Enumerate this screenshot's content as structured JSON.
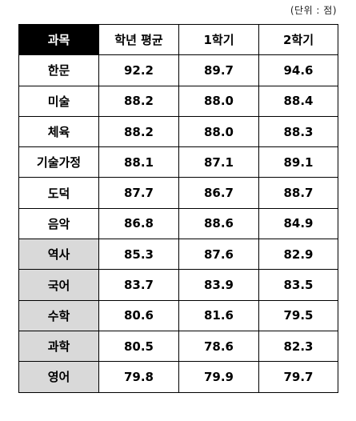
{
  "unit_note": "(단위 : 점)",
  "table": {
    "headers": [
      "과목",
      "학년 평균",
      "1학기",
      "2학기"
    ],
    "rows": [
      {
        "subject": "한문",
        "avg": "92.2",
        "s1": "89.7",
        "s2": "94.6",
        "shaded": false
      },
      {
        "subject": "미술",
        "avg": "88.2",
        "s1": "88.0",
        "s2": "88.4",
        "shaded": false
      },
      {
        "subject": "체육",
        "avg": "88.2",
        "s1": "88.0",
        "s2": "88.3",
        "shaded": false
      },
      {
        "subject": "기술가정",
        "avg": "88.1",
        "s1": "87.1",
        "s2": "89.1",
        "shaded": false
      },
      {
        "subject": "도덕",
        "avg": "87.7",
        "s1": "86.7",
        "s2": "88.7",
        "shaded": false
      },
      {
        "subject": "음악",
        "avg": "86.8",
        "s1": "88.6",
        "s2": "84.9",
        "shaded": false
      },
      {
        "subject": "역사",
        "avg": "85.3",
        "s1": "87.6",
        "s2": "82.9",
        "shaded": true
      },
      {
        "subject": "국어",
        "avg": "83.7",
        "s1": "83.9",
        "s2": "83.5",
        "shaded": true
      },
      {
        "subject": "수학",
        "avg": "80.6",
        "s1": "81.6",
        "s2": "79.5",
        "shaded": true
      },
      {
        "subject": "과학",
        "avg": "80.5",
        "s1": "78.6",
        "s2": "82.3",
        "shaded": true
      },
      {
        "subject": "영어",
        "avg": "79.8",
        "s1": "79.9",
        "s2": "79.7",
        "shaded": true
      }
    ]
  },
  "colors": {
    "header_bg": "#000000",
    "header_fg": "#ffffff",
    "shaded_bg": "#d9d9d9",
    "border": "#000000"
  }
}
